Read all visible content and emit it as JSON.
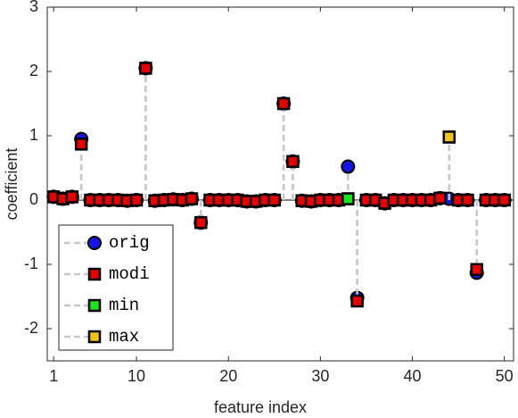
{
  "chart_data": {
    "type": "stem",
    "xlabel": "feature index",
    "ylabel": "coefficient",
    "x": [
      1,
      2,
      3,
      4,
      5,
      6,
      7,
      8,
      9,
      10,
      11,
      12,
      13,
      14,
      15,
      16,
      17,
      18,
      19,
      20,
      21,
      22,
      23,
      24,
      25,
      26,
      27,
      28,
      29,
      30,
      31,
      32,
      33,
      34,
      35,
      36,
      37,
      38,
      39,
      40,
      41,
      42,
      43,
      44,
      45,
      46,
      47,
      48,
      49,
      50
    ],
    "xlim": [
      0.3,
      51
    ],
    "xticks": [
      1,
      10,
      20,
      30,
      40,
      50
    ],
    "ylim": [
      -2.5,
      3
    ],
    "yticks": [
      -2,
      -1,
      0,
      1,
      2,
      3
    ],
    "legend": "lower left",
    "series": [
      {
        "name": "orig",
        "color": "#1515e6",
        "marker": "circle",
        "values": [
          0.05,
          0.02,
          0.05,
          0.95,
          0,
          0,
          0,
          0,
          -0.01,
          0,
          2.05,
          -0.01,
          0,
          0.01,
          0,
          0.02,
          -0.35,
          0,
          0,
          0,
          0,
          -0.02,
          -0.02,
          0,
          0,
          1.5,
          0.6,
          -0.01,
          -0.02,
          0,
          0,
          0,
          0.52,
          -1.52,
          0,
          0,
          -0.05,
          0,
          0,
          0,
          0,
          0,
          0.03,
          0.02,
          0,
          0,
          -1.13,
          0,
          0,
          0
        ]
      },
      {
        "name": "modi",
        "color": "#e60000",
        "marker": "square",
        "values": [
          0.05,
          0.02,
          0.05,
          0.87,
          0,
          0,
          0,
          0,
          -0.01,
          0,
          2.05,
          -0.01,
          0,
          0.01,
          0,
          0.02,
          -0.35,
          0,
          0,
          0,
          0,
          -0.02,
          -0.02,
          0,
          0,
          1.5,
          0.6,
          -0.01,
          -0.02,
          0,
          0,
          0,
          0.02,
          -1.57,
          0,
          0,
          -0.05,
          0,
          0,
          0,
          0,
          0,
          0.03,
          0.98,
          0,
          0,
          -1.08,
          0,
          0,
          0
        ]
      },
      {
        "name": "min",
        "color": "#19e619",
        "marker": "square",
        "values": [
          null,
          null,
          null,
          null,
          null,
          null,
          null,
          null,
          null,
          null,
          null,
          null,
          null,
          null,
          null,
          null,
          null,
          null,
          null,
          null,
          null,
          null,
          null,
          null,
          null,
          null,
          null,
          null,
          null,
          null,
          null,
          null,
          0.02,
          null,
          null,
          null,
          null,
          null,
          null,
          null,
          null,
          null,
          null,
          null,
          null,
          null,
          null,
          null,
          null,
          null
        ]
      },
      {
        "name": "max",
        "color": "#f2c40f",
        "marker": "square",
        "values": [
          null,
          null,
          null,
          null,
          null,
          null,
          null,
          null,
          null,
          null,
          null,
          null,
          null,
          null,
          null,
          null,
          null,
          null,
          null,
          null,
          null,
          null,
          null,
          null,
          null,
          null,
          null,
          null,
          null,
          null,
          null,
          null,
          null,
          null,
          null,
          null,
          null,
          null,
          null,
          null,
          null,
          null,
          null,
          0.98,
          null,
          null,
          null,
          null,
          null,
          null
        ]
      }
    ]
  }
}
